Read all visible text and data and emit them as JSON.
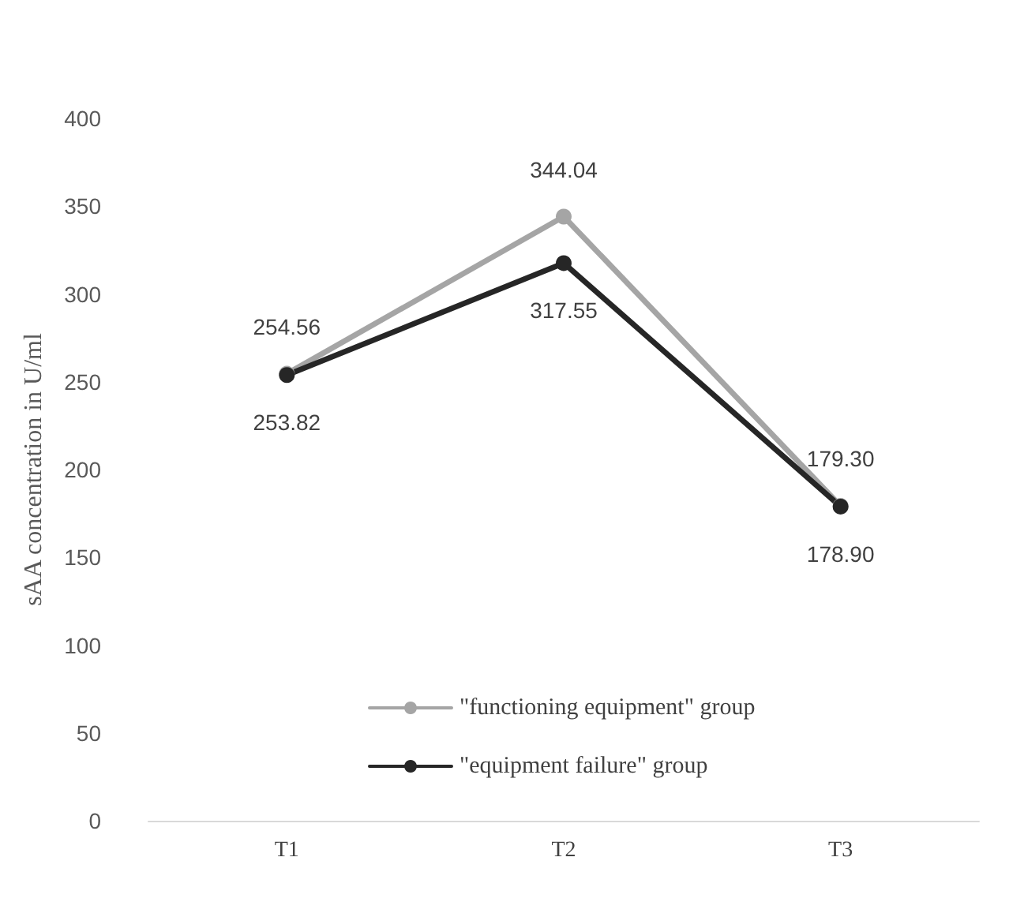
{
  "chart_data": {
    "type": "line",
    "ylabel": "sAA concentration in U/ml",
    "categories": [
      "T1",
      "T2",
      "T3"
    ],
    "series": [
      {
        "name": "\"functioning equipment\" group",
        "color": "#a5a5a5",
        "values": [
          254.56,
          344.04,
          179.3
        ],
        "value_labels": [
          "254.56",
          "344.04",
          "179.30"
        ]
      },
      {
        "name": "\"equipment failure\" group",
        "color": "#262626",
        "values": [
          253.82,
          317.55,
          178.9
        ],
        "value_labels": [
          "253.82",
          "317.55",
          "178.90"
        ]
      }
    ],
    "ylim": [
      0,
      400
    ],
    "yticks": [
      0,
      50,
      100,
      150,
      200,
      250,
      300,
      350,
      400
    ],
    "grid": false,
    "legend": "bottom",
    "marker": "circle",
    "line_style": "solid"
  }
}
